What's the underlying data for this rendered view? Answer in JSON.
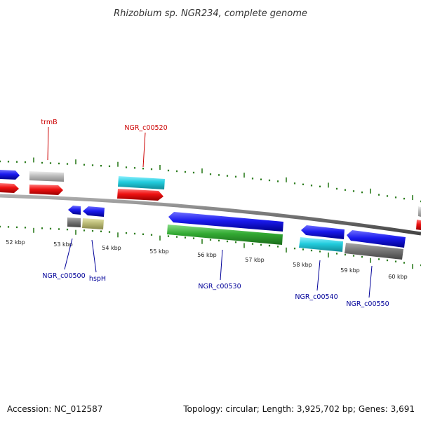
{
  "map": {
    "title": "Rhizobium sp. NGR234, complete genome",
    "kbp_labels": [
      "52 kbp",
      "53 kbp",
      "54 kbp",
      "55 kbp",
      "56 kbp",
      "57 kbp",
      "58 kbp",
      "59 kbp",
      "60 kbp"
    ],
    "gene_labels": {
      "trmB": "trmB",
      "c00520": "NGR_c00520",
      "c00500": "NGR_c00500",
      "hspH": "hspH",
      "c00530": "NGR_c00530",
      "c00540": "NGR_c00540",
      "c00550": "NGR_c00550"
    },
    "colors": {
      "backbone": "#777777",
      "tick": "#2e7d20",
      "cds_blue": "#1a1aee",
      "cds_red": "#ee1111",
      "cds_green": "#33aa33",
      "cds_cyan": "#22ccdd",
      "cds_gray": "#888888",
      "cds_lightgray": "#bbbbbb",
      "cds_olive": "#bbbb77",
      "label_red": "#cc0000",
      "label_blue": "#000099"
    }
  },
  "footer": {
    "accession": "Accession: NC_012587",
    "stats": "Topology: circular; Length: 3,925,702 bp; Genes: 3,691"
  }
}
